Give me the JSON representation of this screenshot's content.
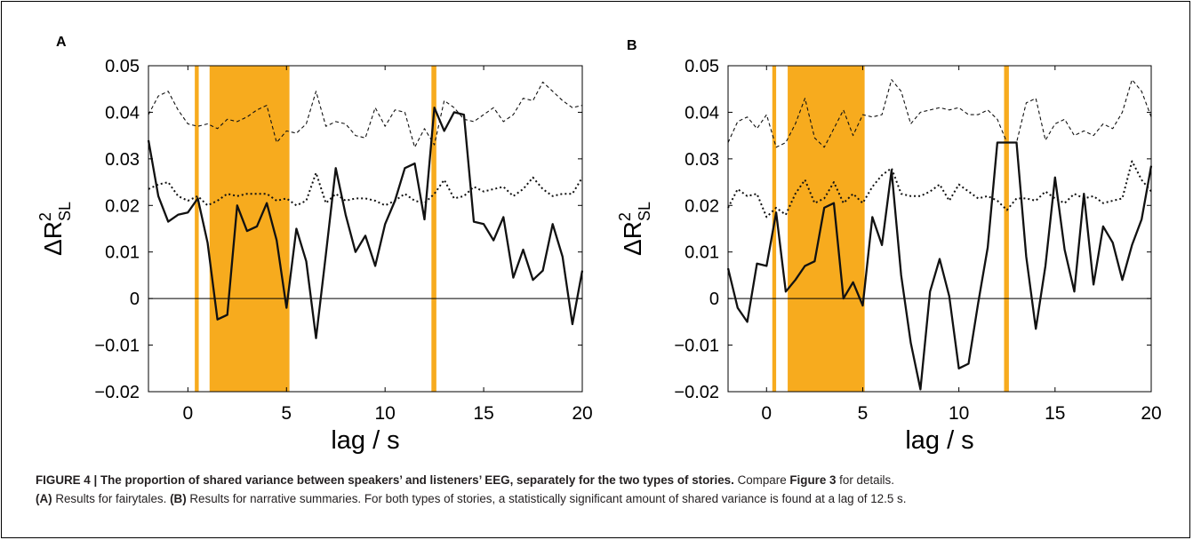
{
  "chart_data": [
    {
      "panel_letter": "A",
      "type": "line",
      "xlabel": "lag / s",
      "ylabel": "ΔR²SL",
      "ylabel_main": "ΔR",
      "ylabel_sup": "2",
      "ylabel_sub": "SL",
      "xlim": [
        -2,
        20
      ],
      "ylim": [
        -0.02,
        0.05
      ],
      "xticks": [
        0,
        5,
        10,
        15,
        20
      ],
      "xtick_labels": [
        "0",
        "5",
        "10",
        "15",
        "20"
      ],
      "yticks": [
        -0.02,
        -0.01,
        0,
        0.01,
        0.02,
        0.03,
        0.04,
        0.05
      ],
      "ytick_labels": [
        "−0.02",
        "−0.01",
        "0",
        "0.01",
        "0.02",
        "0.03",
        "0.04",
        "0.05"
      ],
      "significance_color": "#f7ab1e",
      "significant_intervals": [
        [
          0.35,
          0.55
        ],
        [
          1.1,
          5.15
        ],
        [
          12.35,
          12.6
        ]
      ],
      "x": [
        -2.0,
        -1.5,
        -1.0,
        -0.5,
        0.0,
        0.5,
        1.0,
        1.5,
        2.0,
        2.5,
        3.0,
        3.5,
        4.0,
        4.5,
        5.0,
        5.5,
        6.0,
        6.5,
        7.0,
        7.5,
        8.0,
        8.5,
        9.0,
        9.5,
        10.0,
        10.5,
        11.0,
        11.5,
        12.0,
        12.5,
        13.0,
        13.5,
        14.0,
        14.5,
        15.0,
        15.5,
        16.0,
        16.5,
        17.0,
        17.5,
        18.0,
        18.5,
        19.0,
        19.5,
        20.0
      ],
      "series": [
        {
          "style": "solid",
          "values": [
            0.034,
            0.022,
            0.0165,
            0.018,
            0.0185,
            0.0215,
            0.012,
            -0.0045,
            -0.0035,
            0.02,
            0.0145,
            0.0155,
            0.0205,
            0.0125,
            -0.002,
            0.015,
            0.008,
            -0.0085,
            0.0095,
            0.028,
            0.018,
            0.01,
            0.0135,
            0.007,
            0.016,
            0.021,
            0.028,
            0.029,
            0.017,
            0.041,
            0.036,
            0.04,
            0.0395,
            0.0165,
            0.016,
            0.0125,
            0.0175,
            0.0045,
            0.0105,
            0.004,
            0.006,
            0.016,
            0.009,
            -0.0055,
            0.006
          ]
        },
        {
          "style": "dotted",
          "values": [
            0.0235,
            0.0245,
            0.025,
            0.022,
            0.021,
            0.022,
            0.02,
            0.021,
            0.0225,
            0.022,
            0.0225,
            0.0225,
            0.0225,
            0.021,
            0.0215,
            0.02,
            0.021,
            0.027,
            0.0205,
            0.0225,
            0.021,
            0.0215,
            0.0215,
            0.021,
            0.02,
            0.021,
            0.0225,
            0.021,
            0.0205,
            0.0225,
            0.0255,
            0.0215,
            0.022,
            0.024,
            0.023,
            0.0235,
            0.024,
            0.022,
            0.0235,
            0.026,
            0.0235,
            0.022,
            0.0225,
            0.0225,
            0.026
          ]
        },
        {
          "style": "dashed",
          "values": [
            0.0395,
            0.0435,
            0.0445,
            0.0405,
            0.0375,
            0.037,
            0.0375,
            0.0365,
            0.0385,
            0.038,
            0.039,
            0.0405,
            0.0415,
            0.0335,
            0.036,
            0.0355,
            0.0375,
            0.0445,
            0.037,
            0.038,
            0.0375,
            0.035,
            0.0345,
            0.041,
            0.037,
            0.0405,
            0.04,
            0.0325,
            0.0365,
            0.033,
            0.0425,
            0.041,
            0.0385,
            0.038,
            0.0395,
            0.041,
            0.038,
            0.0395,
            0.043,
            0.0425,
            0.0465,
            0.0445,
            0.0425,
            0.041,
            0.0415
          ]
        }
      ]
    },
    {
      "panel_letter": "B",
      "type": "line",
      "xlabel": "lag / s",
      "ylabel": "ΔR²SL",
      "ylabel_main": "ΔR",
      "ylabel_sup": "2",
      "ylabel_sub": "SL",
      "xlim": [
        -2,
        20
      ],
      "ylim": [
        -0.02,
        0.05
      ],
      "xticks": [
        0,
        5,
        10,
        15,
        20
      ],
      "xtick_labels": [
        "0",
        "5",
        "10",
        "15",
        "20"
      ],
      "yticks": [
        -0.02,
        -0.01,
        0,
        0.01,
        0.02,
        0.03,
        0.04,
        0.05
      ],
      "ytick_labels": [
        "−0.02",
        "−0.01",
        "0",
        "0.01",
        "0.02",
        "0.03",
        "0.04",
        "0.05"
      ],
      "significance_color": "#f7ab1e",
      "significant_intervals": [
        [
          0.3,
          0.5
        ],
        [
          1.1,
          5.1
        ],
        [
          12.35,
          12.6
        ]
      ],
      "x": [
        -2.0,
        -1.5,
        -1.0,
        -0.5,
        0.0,
        0.5,
        1.0,
        1.5,
        2.0,
        2.5,
        3.0,
        3.5,
        4.0,
        4.5,
        5.0,
        5.5,
        6.0,
        6.5,
        7.0,
        7.5,
        8.0,
        8.5,
        9.0,
        9.5,
        10.0,
        10.5,
        11.0,
        11.5,
        12.0,
        12.5,
        13.0,
        13.5,
        14.0,
        14.5,
        15.0,
        15.5,
        16.0,
        16.5,
        17.0,
        17.5,
        18.0,
        18.5,
        19.0,
        19.5,
        20.0
      ],
      "series": [
        {
          "style": "solid",
          "values": [
            0.0065,
            -0.002,
            -0.005,
            0.0075,
            0.007,
            0.0185,
            0.0015,
            0.004,
            0.007,
            0.008,
            0.0195,
            0.0205,
            0.0,
            0.0035,
            -0.0015,
            0.0175,
            0.0115,
            0.0275,
            0.005,
            -0.0095,
            -0.0195,
            0.0015,
            0.0085,
            0.0005,
            -0.015,
            -0.014,
            -0.001,
            0.011,
            0.0335,
            0.0335,
            0.0335,
            0.009,
            -0.0065,
            0.007,
            0.026,
            0.0105,
            0.0015,
            0.0225,
            0.003,
            0.0155,
            0.012,
            0.004,
            0.0115,
            0.017,
            0.0285
          ]
        },
        {
          "style": "dotted",
          "values": [
            0.0195,
            0.0235,
            0.022,
            0.0225,
            0.0175,
            0.0195,
            0.018,
            0.0225,
            0.0255,
            0.0205,
            0.0215,
            0.025,
            0.0205,
            0.0225,
            0.0205,
            0.024,
            0.0265,
            0.028,
            0.0225,
            0.022,
            0.022,
            0.023,
            0.0245,
            0.021,
            0.0245,
            0.023,
            0.0215,
            0.022,
            0.021,
            0.019,
            0.0215,
            0.0215,
            0.021,
            0.023,
            0.0215,
            0.0205,
            0.0225,
            0.0215,
            0.022,
            0.0205,
            0.021,
            0.0215,
            0.0295,
            0.0255,
            0.023
          ]
        },
        {
          "style": "dashed",
          "values": [
            0.0335,
            0.038,
            0.039,
            0.0365,
            0.0395,
            0.0325,
            0.0335,
            0.0375,
            0.043,
            0.0345,
            0.0325,
            0.0365,
            0.0405,
            0.035,
            0.0395,
            0.039,
            0.0395,
            0.047,
            0.0445,
            0.0375,
            0.04,
            0.0405,
            0.041,
            0.0405,
            0.041,
            0.0395,
            0.0395,
            0.0405,
            0.0385,
            0.0335,
            0.0335,
            0.042,
            0.043,
            0.034,
            0.0375,
            0.0385,
            0.035,
            0.036,
            0.035,
            0.0375,
            0.0365,
            0.04,
            0.047,
            0.0445,
            0.039
          ]
        }
      ]
    }
  ],
  "caption": {
    "figure_label": "FIGURE 4 | The proportion of shared variance between speakers’ and listeners’ EEG, separately for the two types of stories.",
    "text1": " Compare ",
    "ref": "Figure 3",
    "text2": " for details.",
    "a_label": "(A)",
    "a_text": " Results for fairytales. ",
    "b_label": "(B)",
    "b_text": " Results for narrative summaries. For both types of stories, a statistically significant amount of shared variance is found at a lag of 12.5 s."
  }
}
